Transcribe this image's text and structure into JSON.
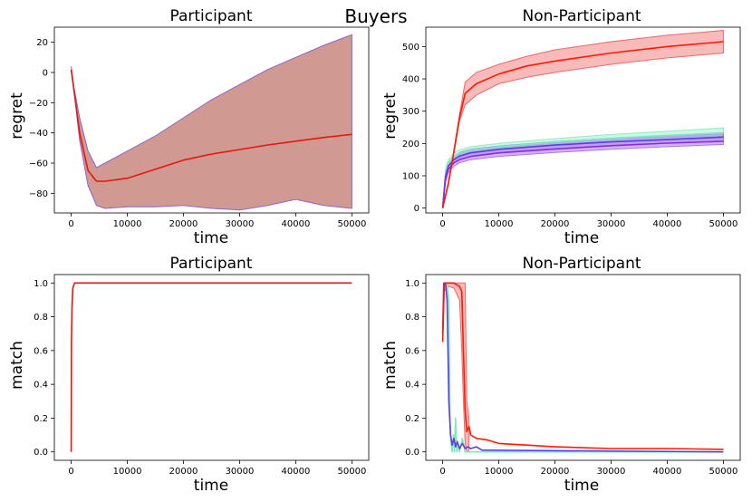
{
  "suptitle": "Buyers",
  "colors": {
    "participant_line": "#e8160c",
    "participant_band": "#c0776c",
    "np_red": "#ff1a00",
    "np_red_band": "#f7a3a3",
    "np_cyan": "#7eeabb",
    "np_cyan_band": "#b9f5da",
    "np_blue": "#5b3fe0",
    "np_blue_band": "#a896f0",
    "np_purple": "#8a2be2",
    "np_purple_band": "#c49af2"
  },
  "chart_data": [
    {
      "type": "line",
      "title": "Participant",
      "xlabel": "time",
      "ylabel": "regret",
      "xlim": [
        -3000,
        53000
      ],
      "ylim": [
        -93,
        30
      ],
      "xticks": [
        0,
        10000,
        20000,
        30000,
        40000,
        50000
      ],
      "yticks": [
        -80,
        -60,
        -40,
        -20,
        0,
        20
      ],
      "grid": false,
      "bands": [
        {
          "name": "",
          "color": "#c0776c",
          "edge": "#8c66d0",
          "x": [
            0,
            500,
            1500,
            3000,
            4500,
            6000,
            10000,
            15000,
            20000,
            25000,
            30000,
            35000,
            40000,
            45000,
            50000
          ],
          "upper": [
            4,
            -10,
            -30,
            -52,
            -63,
            -60,
            -52,
            -42,
            -30,
            -18,
            -8,
            2,
            10,
            18,
            25
          ],
          "lower": [
            4,
            -12,
            -45,
            -75,
            -88,
            -90,
            -89,
            -89,
            -88,
            -90,
            -91,
            -88,
            -84,
            -88,
            -90
          ]
        }
      ],
      "series": [
        {
          "name": "",
          "color": "#e8160c",
          "x": [
            0,
            500,
            1500,
            3000,
            4500,
            6000,
            10000,
            15000,
            20000,
            25000,
            30000,
            35000,
            40000,
            45000,
            50000
          ],
          "values": [
            2,
            -12,
            -40,
            -65,
            -72,
            -72,
            -70,
            -64,
            -58,
            -54,
            -51,
            -48,
            -45.5,
            -43,
            -41
          ]
        }
      ]
    },
    {
      "type": "line",
      "title": "Non-Participant",
      "xlabel": "time",
      "ylabel": "regret",
      "xlim": [
        -3000,
        53000
      ],
      "ylim": [
        -15,
        560
      ],
      "xticks": [
        0,
        10000,
        20000,
        30000,
        40000,
        50000
      ],
      "yticks": [
        0,
        100,
        200,
        300,
        400,
        500
      ],
      "grid": false,
      "bands": [
        {
          "name": "",
          "color": "#f7a3a3",
          "edge": "#e86a6a",
          "x": [
            0,
            1000,
            2000,
            3000,
            4000,
            6000,
            10000,
            15000,
            20000,
            30000,
            40000,
            50000
          ],
          "upper": [
            0,
            80,
            180,
            290,
            390,
            420,
            445,
            470,
            490,
            515,
            535,
            550
          ],
          "lower": [
            0,
            70,
            170,
            270,
            320,
            350,
            385,
            405,
            420,
            445,
            465,
            480
          ]
        },
        {
          "name": "",
          "color": "#b9f5da",
          "edge": "#9be8c4",
          "x": [
            0,
            500,
            1000,
            2000,
            3000,
            5000,
            10000,
            20000,
            30000,
            40000,
            50000
          ],
          "upper": [
            0,
            120,
            150,
            170,
            180,
            190,
            200,
            215,
            228,
            238,
            248
          ],
          "lower": [
            0,
            90,
            130,
            150,
            160,
            170,
            180,
            195,
            205,
            212,
            218
          ]
        },
        {
          "name": "",
          "color": "#a896f0",
          "edge": "#8f7ae8",
          "x": [
            0,
            500,
            1000,
            2000,
            3000,
            5000,
            10000,
            20000,
            30000,
            40000,
            50000
          ],
          "upper": [
            0,
            110,
            140,
            160,
            172,
            182,
            192,
            206,
            216,
            224,
            232
          ],
          "lower": [
            0,
            85,
            120,
            140,
            150,
            160,
            172,
            185,
            195,
            201,
            207
          ]
        },
        {
          "name": "",
          "color": "#c49af2",
          "edge": "#a77be8",
          "x": [
            0,
            500,
            1000,
            2000,
            3000,
            5000,
            10000,
            20000,
            30000,
            40000,
            50000
          ],
          "upper": [
            0,
            100,
            130,
            150,
            162,
            172,
            182,
            195,
            205,
            212,
            218
          ],
          "lower": [
            0,
            80,
            110,
            130,
            140,
            150,
            160,
            172,
            182,
            190,
            197
          ]
        }
      ],
      "series": [
        {
          "name": "",
          "color": "#7eeabb",
          "x": [
            0,
            500,
            1000,
            2000,
            3000,
            5000,
            10000,
            20000,
            30000,
            40000,
            50000
          ],
          "values": [
            0,
            105,
            140,
            160,
            170,
            180,
            190,
            205,
            216,
            225,
            233
          ]
        },
        {
          "name": "",
          "color": "#5b3fe0",
          "x": [
            0,
            500,
            1000,
            2000,
            3000,
            5000,
            10000,
            20000,
            30000,
            40000,
            50000
          ],
          "values": [
            0,
            97,
            130,
            150,
            161,
            171,
            182,
            195,
            205,
            212,
            220
          ]
        },
        {
          "name": "",
          "color": "#8a2be2",
          "x": [
            0,
            500,
            1000,
            2000,
            3000,
            5000,
            10000,
            20000,
            30000,
            40000,
            50000
          ],
          "values": [
            0,
            90,
            120,
            140,
            150,
            160,
            171,
            183,
            193,
            201,
            207
          ]
        },
        {
          "name": "",
          "color": "#ff1a00",
          "x": [
            0,
            1000,
            2000,
            3000,
            4000,
            6000,
            10000,
            15000,
            20000,
            30000,
            40000,
            50000
          ],
          "values": [
            0,
            75,
            175,
            280,
            355,
            385,
            415,
            440,
            455,
            480,
            500,
            515
          ]
        }
      ]
    },
    {
      "type": "line",
      "title": "Participant",
      "xlabel": "time",
      "ylabel": "match",
      "xlim": [
        -3000,
        53000
      ],
      "ylim": [
        -0.05,
        1.05
      ],
      "xticks": [
        0,
        10000,
        20000,
        30000,
        40000,
        50000
      ],
      "yticks": [
        0.0,
        0.2,
        0.4,
        0.6,
        0.8,
        1.0
      ],
      "grid": false,
      "bands": [],
      "series": [
        {
          "name": "",
          "color": "#e8160c",
          "x": [
            0,
            50,
            150,
            300,
            600,
            1000,
            50000
          ],
          "values": [
            0.0,
            0.65,
            0.85,
            0.97,
            1.0,
            1.0,
            1.0
          ]
        }
      ]
    },
    {
      "type": "line",
      "title": "Non-Participant",
      "xlabel": "time",
      "ylabel": "match",
      "xlim": [
        -3000,
        53000
      ],
      "ylim": [
        -0.05,
        1.05
      ],
      "xticks": [
        0,
        10000,
        20000,
        30000,
        40000,
        50000
      ],
      "yticks": [
        0.0,
        0.2,
        0.4,
        0.6,
        0.8,
        1.0
      ],
      "grid": false,
      "bands": [
        {
          "name": "",
          "color": "#f7a3a3",
          "edge": "#e86a6a",
          "x": [
            0,
            300,
            1000,
            2000,
            3000,
            3400,
            3700,
            4000,
            4300,
            4700
          ],
          "upper": [
            0.65,
            1.0,
            1.0,
            1.0,
            1.0,
            1.0,
            1.0,
            1.0,
            0.3,
            0.2
          ],
          "lower": [
            0.65,
            0.95,
            0.98,
            0.97,
            0.9,
            0.6,
            0.3,
            0.05,
            0.0,
            0.0
          ]
        }
      ],
      "series": [
        {
          "name": "",
          "color": "#7eeabb",
          "x": [
            0,
            200,
            500,
            800,
            1100,
            1300,
            1500,
            1700,
            1900,
            2100,
            2300,
            2500,
            2700,
            3000,
            3500,
            4000,
            5000,
            50000
          ],
          "values": [
            0.7,
            1.0,
            1.0,
            1.0,
            0.9,
            0.2,
            0.05,
            0.0,
            0.1,
            0.0,
            0.2,
            0.0,
            0.05,
            0.0,
            0.08,
            0.0,
            0.0,
            0.0
          ]
        },
        {
          "name": "",
          "color": "#5b3fe0",
          "x": [
            0,
            200,
            500,
            800,
            1100,
            1400,
            1700,
            2000,
            2300,
            2600,
            3000,
            3500,
            4000,
            4500,
            5000,
            6000,
            7000,
            8000,
            50000
          ],
          "values": [
            0.7,
            1.0,
            1.0,
            0.9,
            0.3,
            0.1,
            0.04,
            0.08,
            0.03,
            0.06,
            0.02,
            0.05,
            0.02,
            0.03,
            0.02,
            0.03,
            0.01,
            0.01,
            0.0
          ]
        },
        {
          "name": "",
          "color": "#ff1a00",
          "x": [
            0,
            300,
            1000,
            2000,
            3000,
            3400,
            3700,
            4000,
            4300,
            4700,
            5000,
            6000,
            8000,
            10000,
            15000,
            20000,
            30000,
            40000,
            50000
          ],
          "values": [
            0.65,
            1.0,
            1.0,
            1.0,
            0.98,
            0.95,
            0.6,
            0.25,
            0.12,
            0.15,
            0.1,
            0.08,
            0.07,
            0.05,
            0.04,
            0.03,
            0.02,
            0.02,
            0.015
          ]
        }
      ]
    }
  ]
}
